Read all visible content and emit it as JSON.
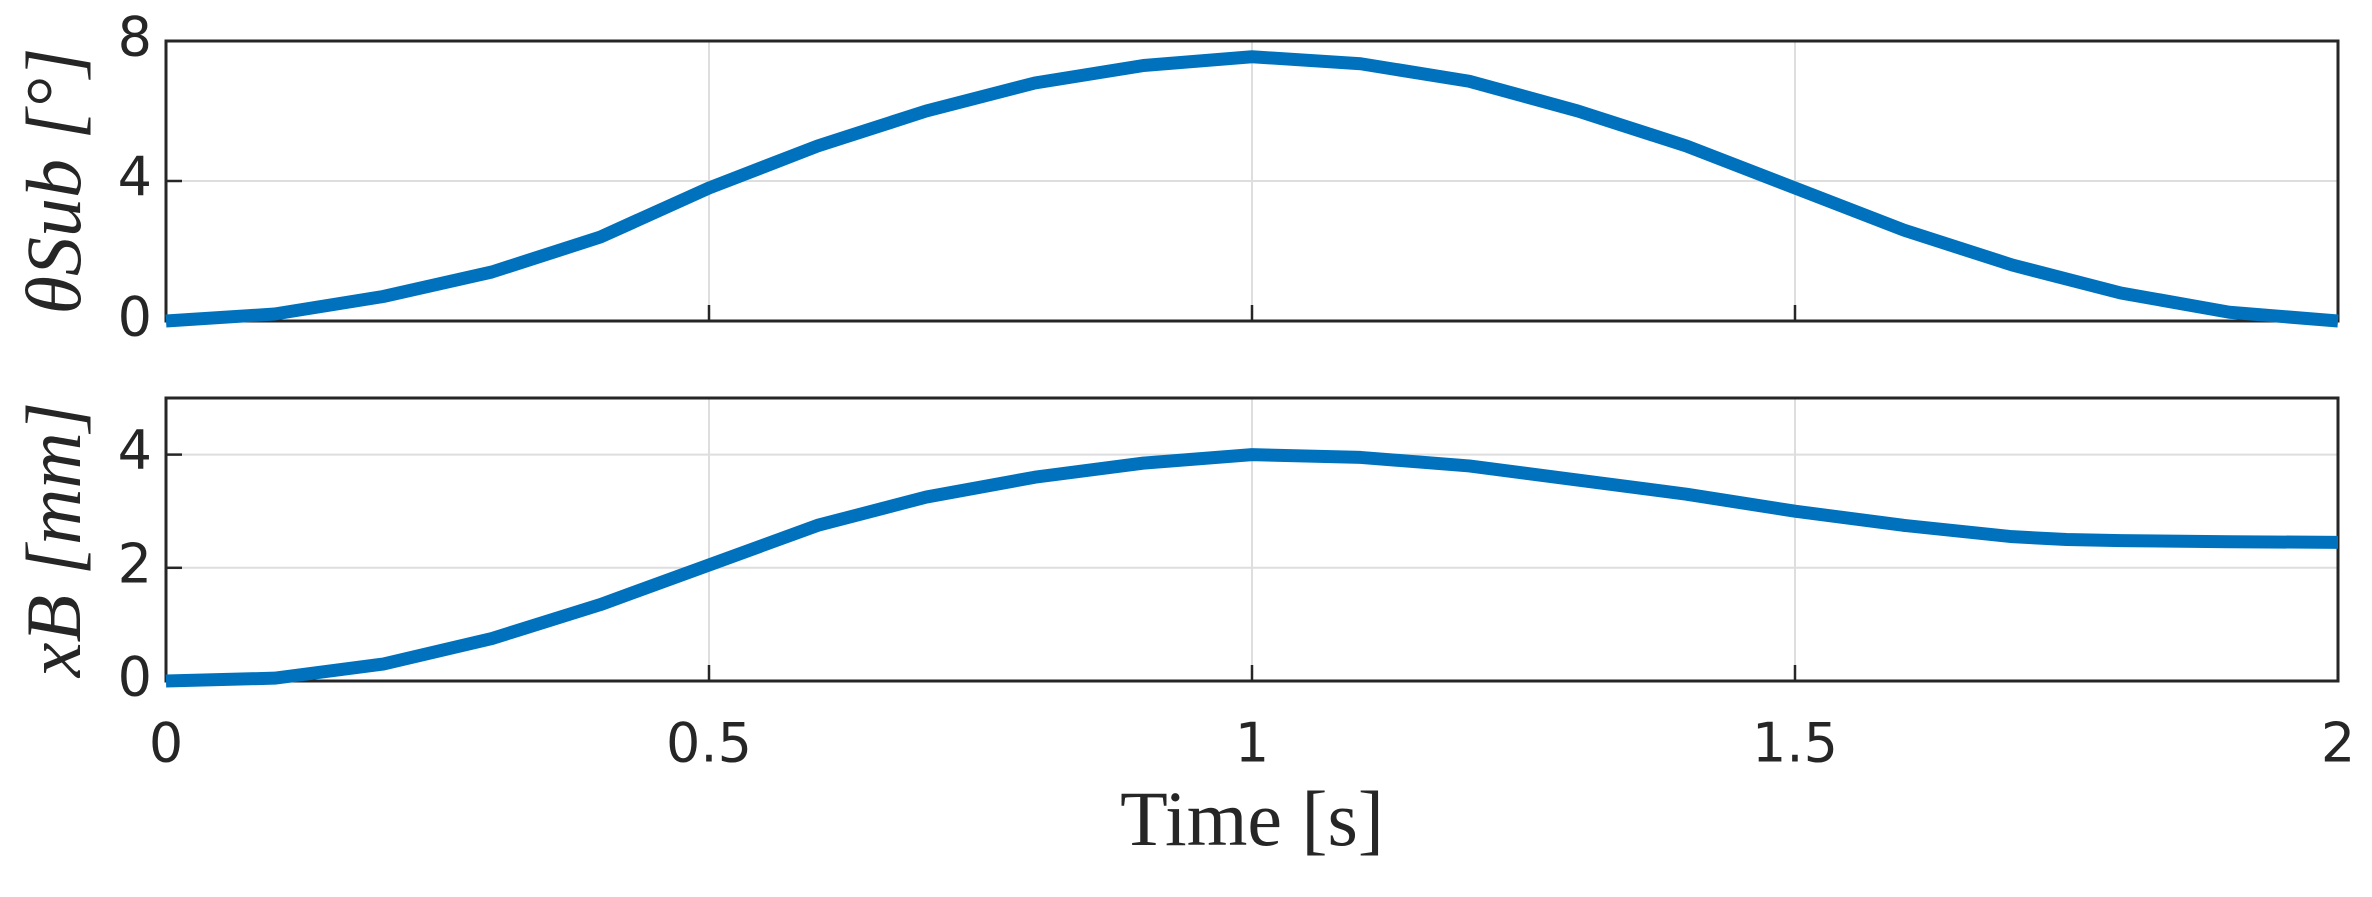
{
  "chart_data": [
    {
      "type": "line",
      "ylabel": "θSub [°]",
      "xlim": [
        0,
        2
      ],
      "xticks": [
        0,
        0.5,
        1,
        1.5,
        2
      ],
      "ylim": [
        0,
        8
      ],
      "yticks": [
        0,
        4,
        8
      ],
      "grid": true,
      "series": [
        {
          "color": "#0072bd",
          "x": [
            0,
            0.1,
            0.2,
            0.3,
            0.4,
            0.5,
            0.6,
            0.7,
            0.8,
            0.9,
            1.0,
            1.1,
            1.2,
            1.3,
            1.4,
            1.5,
            1.6,
            1.7,
            1.8,
            1.9,
            2.0
          ],
          "values": [
            0,
            0.2,
            0.7,
            1.4,
            2.4,
            3.8,
            5.0,
            6.0,
            6.8,
            7.3,
            7.55,
            7.35,
            6.85,
            6.0,
            5.0,
            3.8,
            2.6,
            1.6,
            0.8,
            0.25,
            0
          ]
        }
      ]
    },
    {
      "type": "line",
      "ylabel": "xB [mm]",
      "xlabel": "Time [s]",
      "xlim": [
        0,
        2
      ],
      "xticks": [
        0,
        0.5,
        1,
        1.5,
        2
      ],
      "ylim": [
        0,
        5
      ],
      "yticks": [
        0,
        2,
        4
      ],
      "grid": true,
      "series": [
        {
          "color": "#0072bd",
          "x": [
            0,
            0.1,
            0.2,
            0.3,
            0.4,
            0.5,
            0.6,
            0.7,
            0.8,
            0.9,
            1.0,
            1.1,
            1.2,
            1.3,
            1.4,
            1.5,
            1.6,
            1.7,
            1.75,
            1.8,
            1.9,
            2.0
          ],
          "values": [
            0,
            0.05,
            0.3,
            0.75,
            1.35,
            2.05,
            2.75,
            3.25,
            3.6,
            3.85,
            4.0,
            3.95,
            3.8,
            3.55,
            3.3,
            3.0,
            2.75,
            2.55,
            2.5,
            2.48,
            2.46,
            2.45
          ]
        }
      ]
    }
  ]
}
